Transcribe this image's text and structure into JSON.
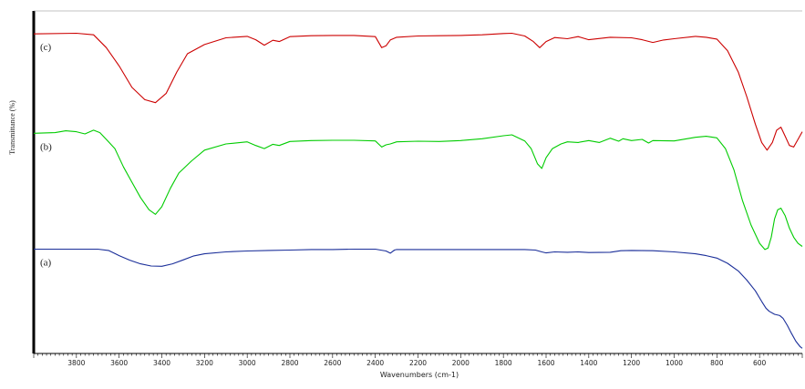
{
  "chart_data": {
    "type": "line",
    "xlabel": "Wavenumbers (cm-1)",
    "ylabel": "Transmittance (%)",
    "xlim": [
      4000,
      400
    ],
    "x_reversed": true,
    "y_tick_labels_shown": false,
    "xticks": [
      3800,
      3600,
      3400,
      3200,
      3000,
      2800,
      2600,
      2400,
      2200,
      2000,
      1800,
      1600,
      1400,
      1200,
      1000,
      800,
      600
    ],
    "series": [
      {
        "name": "(c)",
        "color": "#cc0000",
        "points": [
          [
            4000,
            92.5
          ],
          [
            3800,
            92.7
          ],
          [
            3720,
            92.2
          ],
          [
            3660,
            88
          ],
          [
            3600,
            82
          ],
          [
            3540,
            75
          ],
          [
            3480,
            71
          ],
          [
            3430,
            70
          ],
          [
            3380,
            73
          ],
          [
            3330,
            80
          ],
          [
            3280,
            86
          ],
          [
            3200,
            89
          ],
          [
            3100,
            91.2
          ],
          [
            3000,
            91.7
          ],
          [
            2960,
            90.6
          ],
          [
            2920,
            88.8
          ],
          [
            2880,
            90.4
          ],
          [
            2850,
            90
          ],
          [
            2800,
            91.6
          ],
          [
            2700,
            91.9
          ],
          [
            2600,
            92
          ],
          [
            2500,
            92
          ],
          [
            2400,
            91.6
          ],
          [
            2370,
            88
          ],
          [
            2350,
            88.6
          ],
          [
            2330,
            90.5
          ],
          [
            2300,
            91.4
          ],
          [
            2200,
            91.8
          ],
          [
            2100,
            91.9
          ],
          [
            2000,
            92
          ],
          [
            1900,
            92.2
          ],
          [
            1800,
            92.6
          ],
          [
            1760,
            92.7
          ],
          [
            1700,
            91.8
          ],
          [
            1660,
            90
          ],
          [
            1630,
            88
          ],
          [
            1600,
            90
          ],
          [
            1560,
            91.3
          ],
          [
            1500,
            90.9
          ],
          [
            1450,
            91.6
          ],
          [
            1400,
            90.6
          ],
          [
            1300,
            91.4
          ],
          [
            1200,
            91.2
          ],
          [
            1150,
            90.6
          ],
          [
            1100,
            89.7
          ],
          [
            1050,
            90.5
          ],
          [
            1000,
            90.9
          ],
          [
            900,
            91.7
          ],
          [
            850,
            91.4
          ],
          [
            800,
            90.8
          ],
          [
            750,
            87
          ],
          [
            700,
            80
          ],
          [
            660,
            72
          ],
          [
            620,
            63
          ],
          [
            590,
            57
          ],
          [
            565,
            54.5
          ],
          [
            540,
            57
          ],
          [
            520,
            61
          ],
          [
            500,
            62
          ],
          [
            480,
            59
          ],
          [
            460,
            56
          ],
          [
            440,
            55.5
          ],
          [
            420,
            58
          ],
          [
            400,
            60.5
          ]
        ]
      },
      {
        "name": "(b)",
        "color": "#00cc00",
        "points": [
          [
            4000,
            60
          ],
          [
            3900,
            60.2
          ],
          [
            3850,
            60.8
          ],
          [
            3800,
            60.5
          ],
          [
            3760,
            59.8
          ],
          [
            3720,
            61
          ],
          [
            3690,
            60.2
          ],
          [
            3660,
            58
          ],
          [
            3620,
            55
          ],
          [
            3580,
            49
          ],
          [
            3540,
            44
          ],
          [
            3500,
            39
          ],
          [
            3460,
            35
          ],
          [
            3430,
            33.5
          ],
          [
            3400,
            36
          ],
          [
            3360,
            42
          ],
          [
            3320,
            47
          ],
          [
            3260,
            51
          ],
          [
            3200,
            54.5
          ],
          [
            3100,
            56.5
          ],
          [
            3000,
            57.2
          ],
          [
            2960,
            56
          ],
          [
            2920,
            55
          ],
          [
            2880,
            56.4
          ],
          [
            2850,
            56
          ],
          [
            2800,
            57.3
          ],
          [
            2700,
            57.6
          ],
          [
            2600,
            57.7
          ],
          [
            2500,
            57.7
          ],
          [
            2400,
            57.5
          ],
          [
            2370,
            55.5
          ],
          [
            2350,
            56.2
          ],
          [
            2330,
            56.5
          ],
          [
            2300,
            57.2
          ],
          [
            2200,
            57.4
          ],
          [
            2100,
            57.3
          ],
          [
            2000,
            57.6
          ],
          [
            1900,
            58.2
          ],
          [
            1800,
            59.2
          ],
          [
            1760,
            59.5
          ],
          [
            1700,
            57.5
          ],
          [
            1670,
            55
          ],
          [
            1640,
            50
          ],
          [
            1620,
            48.5
          ],
          [
            1600,
            52
          ],
          [
            1570,
            55
          ],
          [
            1530,
            56.5
          ],
          [
            1500,
            57.2
          ],
          [
            1450,
            57
          ],
          [
            1400,
            57.6
          ],
          [
            1350,
            57
          ],
          [
            1300,
            58.4
          ],
          [
            1260,
            57.4
          ],
          [
            1240,
            58.2
          ],
          [
            1200,
            57.6
          ],
          [
            1150,
            58
          ],
          [
            1120,
            56.8
          ],
          [
            1100,
            57.6
          ],
          [
            1000,
            57.5
          ],
          [
            900,
            58.7
          ],
          [
            850,
            59
          ],
          [
            800,
            58.5
          ],
          [
            760,
            55
          ],
          [
            720,
            48
          ],
          [
            680,
            38
          ],
          [
            640,
            30
          ],
          [
            600,
            24
          ],
          [
            575,
            22
          ],
          [
            560,
            22.5
          ],
          [
            545,
            26
          ],
          [
            530,
            32
          ],
          [
            515,
            35
          ],
          [
            500,
            35.5
          ],
          [
            480,
            33
          ],
          [
            460,
            29
          ],
          [
            440,
            26
          ],
          [
            420,
            24
          ],
          [
            400,
            23
          ]
        ]
      },
      {
        "name": "(a)",
        "color": "#1a2e99",
        "points": [
          [
            4000,
            22.1
          ],
          [
            3900,
            22.1
          ],
          [
            3800,
            22.1
          ],
          [
            3700,
            22.1
          ],
          [
            3650,
            21.7
          ],
          [
            3600,
            20
          ],
          [
            3550,
            18.5
          ],
          [
            3500,
            17.3
          ],
          [
            3450,
            16.6
          ],
          [
            3400,
            16.5
          ],
          [
            3350,
            17.3
          ],
          [
            3300,
            18.6
          ],
          [
            3250,
            19.9
          ],
          [
            3200,
            20.6
          ],
          [
            3100,
            21.2
          ],
          [
            3000,
            21.5
          ],
          [
            2900,
            21.7
          ],
          [
            2800,
            21.8
          ],
          [
            2700,
            22
          ],
          [
            2600,
            22
          ],
          [
            2500,
            22.1
          ],
          [
            2400,
            22.1
          ],
          [
            2350,
            21.5
          ],
          [
            2330,
            20.8
          ],
          [
            2310,
            21.8
          ],
          [
            2300,
            22
          ],
          [
            2200,
            22
          ],
          [
            2100,
            22
          ],
          [
            2000,
            22
          ],
          [
            1900,
            22
          ],
          [
            1800,
            22
          ],
          [
            1700,
            22
          ],
          [
            1650,
            21.8
          ],
          [
            1620,
            21.2
          ],
          [
            1600,
            20.9
          ],
          [
            1560,
            21.2
          ],
          [
            1500,
            21.1
          ],
          [
            1450,
            21.2
          ],
          [
            1400,
            21
          ],
          [
            1300,
            21.1
          ],
          [
            1250,
            21.6
          ],
          [
            1200,
            21.7
          ],
          [
            1100,
            21.6
          ],
          [
            1000,
            21.2
          ],
          [
            900,
            20.6
          ],
          [
            850,
            20
          ],
          [
            800,
            19.2
          ],
          [
            750,
            17.5
          ],
          [
            700,
            15
          ],
          [
            660,
            12
          ],
          [
            620,
            8.5
          ],
          [
            590,
            5
          ],
          [
            570,
            2.8
          ],
          [
            555,
            1.8
          ],
          [
            530,
            0.8
          ],
          [
            505,
            0.4
          ],
          [
            490,
            -0.5
          ],
          [
            470,
            -2.8
          ],
          [
            450,
            -5.5
          ],
          [
            430,
            -8
          ],
          [
            410,
            -9.8
          ],
          [
            400,
            -10.3
          ]
        ]
      }
    ],
    "colors": {
      "axis": "#000000",
      "spine": "#000000"
    }
  }
}
